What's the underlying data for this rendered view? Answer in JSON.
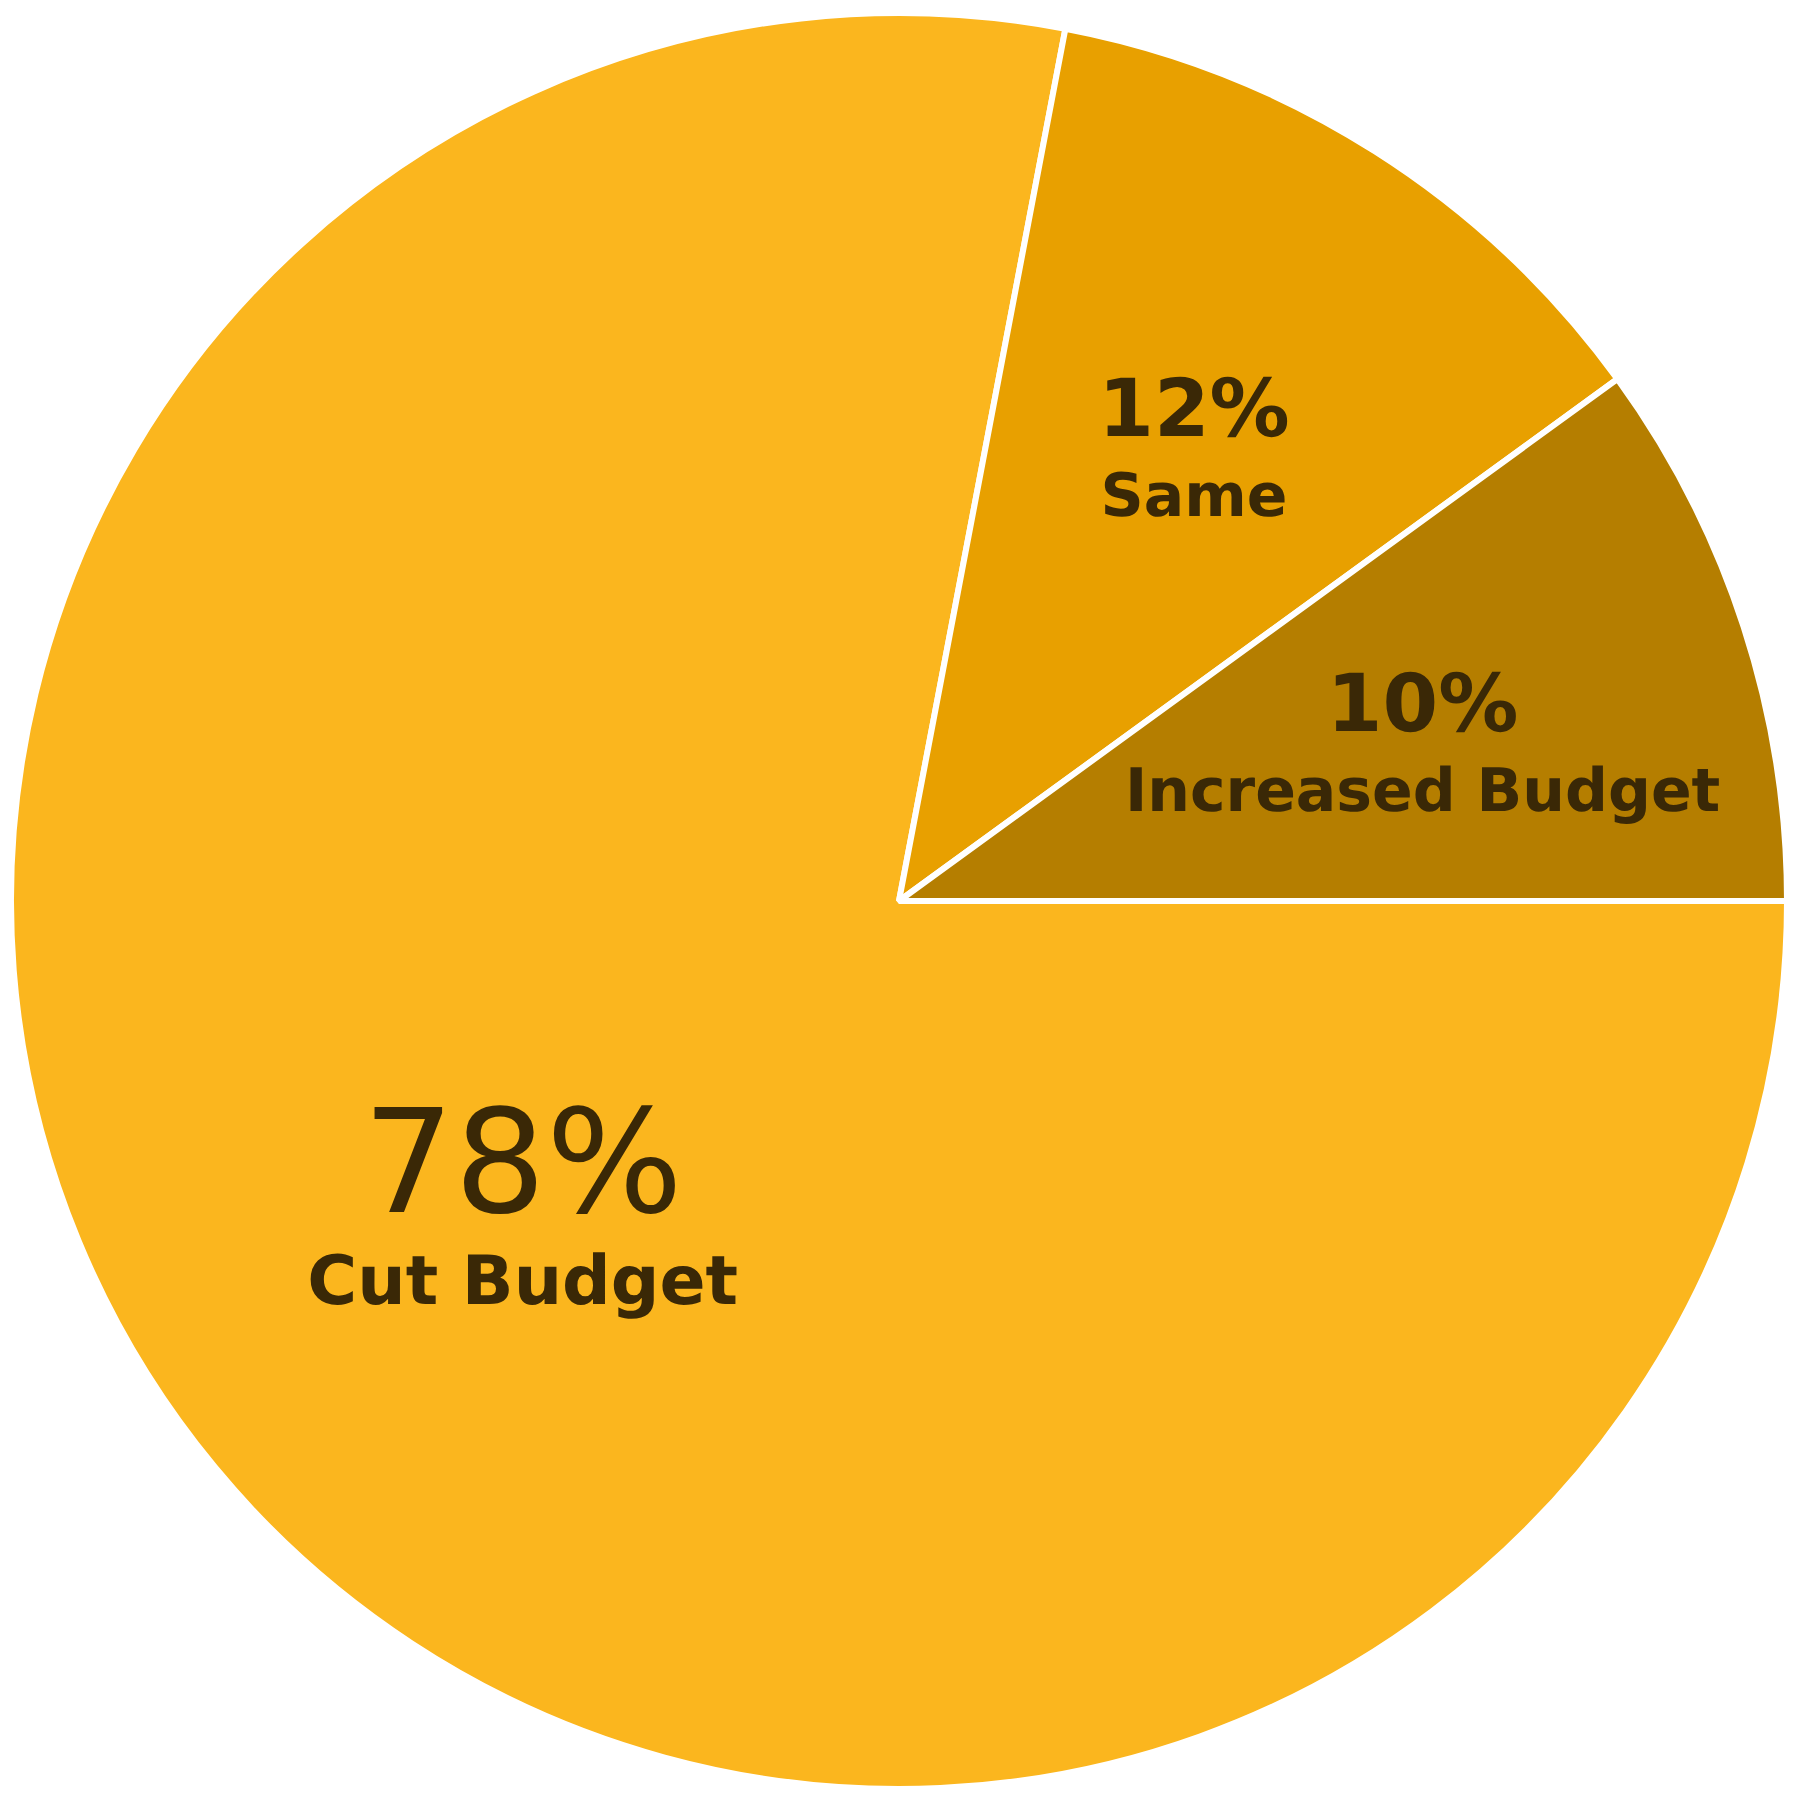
{
  "chart_data": {
    "type": "pie",
    "categories": [
      "Cut Budget",
      "Same",
      "Increased Budget"
    ],
    "values": [
      78,
      12,
      10
    ],
    "colors": [
      "#fbb61e",
      "#e8a000",
      "#b57e00"
    ],
    "value_labels": [
      "78%",
      "12%",
      "10%"
    ],
    "legend": false
  }
}
